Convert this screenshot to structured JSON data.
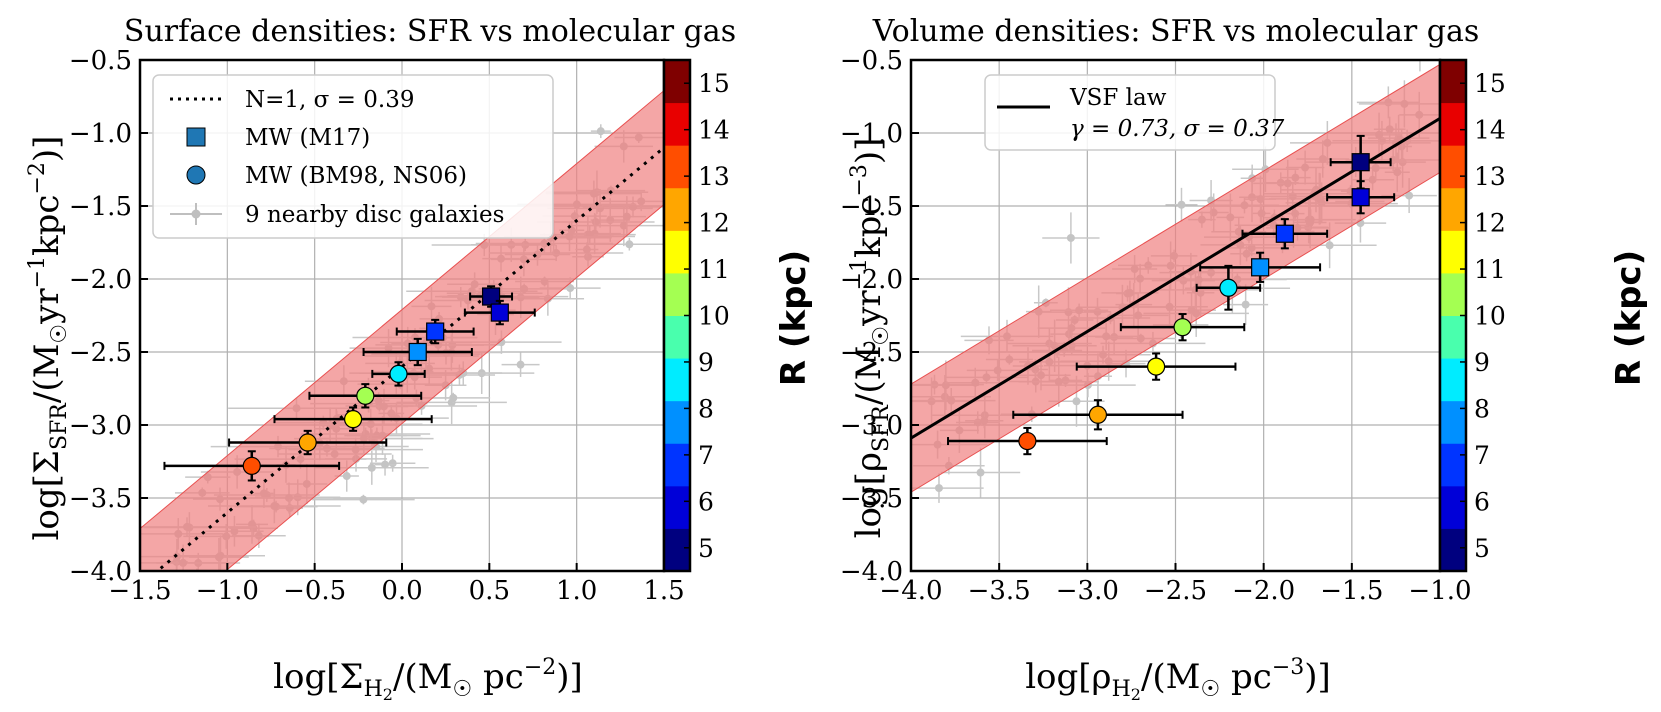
{
  "chart_data": [
    {
      "type": "scatter",
      "title": "Surface densities: SFR vs molecular gas",
      "xlabel": "log[Σ_H2/(M☉ pc⁻²)]",
      "ylabel": "log[Σ_SFR/(M☉ yr⁻¹ kpc⁻²)]",
      "xlim": [
        -1.5,
        1.5
      ],
      "ylim": [
        -4.0,
        -0.5
      ],
      "xticks": [
        -1.5,
        -1.0,
        -0.5,
        0.0,
        0.5,
        1.0,
        1.5
      ],
      "xtick_labels": [
        "−1.5",
        "−1.0",
        "−0.5",
        "0.0",
        "0.5",
        "1.0",
        "1.5"
      ],
      "yticks": [
        -4.0,
        -3.5,
        -3.0,
        -2.5,
        -2.0,
        -1.5,
        -1.0,
        -0.5
      ],
      "ytick_labels": [
        "−4.0",
        "−3.5",
        "−3.0",
        "−2.5",
        "−2.0",
        "−1.5",
        "−1.0",
        "−0.5"
      ],
      "grid": true,
      "legend_position": "top-left",
      "legend": [
        {
          "style": "dotted-line",
          "label": "N=1, σ = 0.39"
        },
        {
          "style": "square",
          "label": "MW (M17)"
        },
        {
          "style": "circle",
          "label": "MW (BM98, NS06)"
        },
        {
          "style": "gray-errorbar",
          "label": "9 nearby disc galaxies"
        }
      ],
      "fit_line": {
        "style": "dotted",
        "slope": 1.0,
        "intercept": -2.6,
        "x_range": [
          -1.5,
          1.5
        ]
      },
      "scatter_band": {
        "sigma": 0.39,
        "color": "#f08080"
      },
      "series": [
        {
          "name": "MW (M17)",
          "marker": "square",
          "points": [
            {
              "x": 0.51,
              "y": -2.12,
              "xerr": 0.12,
              "yerr": 0.07,
              "R": 5
            },
            {
              "x": 0.56,
              "y": -2.23,
              "xerr": 0.2,
              "yerr": 0.08,
              "R": 6
            },
            {
              "x": 0.19,
              "y": -2.36,
              "xerr": 0.22,
              "yerr": 0.08,
              "R": 7
            },
            {
              "x": 0.09,
              "y": -2.5,
              "xerr": 0.31,
              "yerr": 0.09,
              "R": 8
            }
          ]
        },
        {
          "name": "MW (BM98, NS06)",
          "marker": "circle",
          "points": [
            {
              "x": -0.02,
              "y": -2.65,
              "xerr": 0.15,
              "yerr": 0.08,
              "R": 9
            },
            {
              "x": -0.21,
              "y": -2.8,
              "xerr": 0.32,
              "yerr": 0.08,
              "R": 10
            },
            {
              "x": -0.28,
              "y": -2.96,
              "xerr": 0.45,
              "yerr": 0.08,
              "R": 11
            },
            {
              "x": -0.54,
              "y": -3.12,
              "xerr": 0.45,
              "yerr": 0.08,
              "R": 12
            },
            {
              "x": -0.86,
              "y": -3.28,
              "xerr": 0.5,
              "yerr": 0.1,
              "R": 13
            }
          ]
        }
      ],
      "colorbar": {
        "label": "R (kpc)",
        "range": [
          4.5,
          15.5
        ],
        "ticks": [
          5,
          6,
          7,
          8,
          9,
          10,
          11,
          12,
          13,
          14,
          15
        ],
        "colors": [
          "#00007f",
          "#0000d8",
          "#0034ff",
          "#0090ff",
          "#00ecff",
          "#49ffad",
          "#a4ff52",
          "#ffff00",
          "#ffa600",
          "#ff4e00",
          "#e80000",
          "#7f0000"
        ]
      }
    },
    {
      "type": "scatter",
      "title": "Volume densities: SFR vs molecular gas",
      "xlabel": "log[ρ_H2/(M☉ pc⁻³)]",
      "ylabel": "log[ρ_SFR/(M☉ yr⁻¹ kpc⁻³)]",
      "xlim": [
        -4.0,
        -1.0
      ],
      "ylim": [
        -4.0,
        -0.5
      ],
      "xticks": [
        -4.0,
        -3.5,
        -3.0,
        -2.5,
        -2.0,
        -1.5,
        -1.0
      ],
      "xtick_labels": [
        "−4.0",
        "−3.5",
        "−3.0",
        "−2.5",
        "−2.0",
        "−1.5",
        "−1.0"
      ],
      "yticks": [
        -4.0,
        -3.5,
        -3.0,
        -2.5,
        -2.0,
        -1.5,
        -1.0,
        -0.5
      ],
      "ytick_labels": [
        "−4.0",
        "−3.5",
        "−3.0",
        "−2.5",
        "−2.0",
        "−1.5",
        "−1.0",
        "−0.5"
      ],
      "grid": true,
      "legend_position": "top-left",
      "legend": [
        {
          "style": "solid-line",
          "label": "VSF law",
          "sublabel": "γ = 0.73, σ = 0.37"
        }
      ],
      "fit_line": {
        "style": "solid",
        "slope": 0.73,
        "intercept": -0.17,
        "x_range": [
          -4.0,
          -1.0
        ]
      },
      "scatter_band": {
        "sigma": 0.37,
        "color": "#f08080"
      },
      "series": [
        {
          "name": "MW (M17)",
          "marker": "square",
          "points": [
            {
              "x": -1.45,
              "y": -1.2,
              "xerr": 0.17,
              "yerr": 0.18,
              "R": 5
            },
            {
              "x": -1.45,
              "y": -1.44,
              "xerr": 0.19,
              "yerr": 0.11,
              "R": 6
            },
            {
              "x": -1.88,
              "y": -1.69,
              "xerr": 0.24,
              "yerr": 0.1,
              "R": 7
            },
            {
              "x": -2.02,
              "y": -1.92,
              "xerr": 0.34,
              "yerr": 0.1,
              "R": 8
            }
          ]
        },
        {
          "name": "MW (BM98, NS06)",
          "marker": "circle",
          "points": [
            {
              "x": -2.2,
              "y": -2.06,
              "xerr": 0.18,
              "yerr": 0.15,
              "R": 9
            },
            {
              "x": -2.46,
              "y": -2.33,
              "xerr": 0.35,
              "yerr": 0.09,
              "R": 10
            },
            {
              "x": -2.61,
              "y": -2.6,
              "xerr": 0.45,
              "yerr": 0.09,
              "R": 11
            },
            {
              "x": -2.94,
              "y": -2.93,
              "xerr": 0.48,
              "yerr": 0.1,
              "R": 12
            },
            {
              "x": -3.34,
              "y": -3.11,
              "xerr": 0.45,
              "yerr": 0.09,
              "R": 13
            }
          ]
        }
      ],
      "colorbar": {
        "label": "R (kpc)",
        "range": [
          4.5,
          15.5
        ],
        "ticks": [
          5,
          6,
          7,
          8,
          9,
          10,
          11,
          12,
          13,
          14,
          15
        ],
        "colors": [
          "#00007f",
          "#0000d8",
          "#0034ff",
          "#0090ff",
          "#00ecff",
          "#49ffad",
          "#a4ff52",
          "#ffff00",
          "#ffa600",
          "#ff4e00",
          "#e80000",
          "#7f0000"
        ]
      }
    }
  ]
}
